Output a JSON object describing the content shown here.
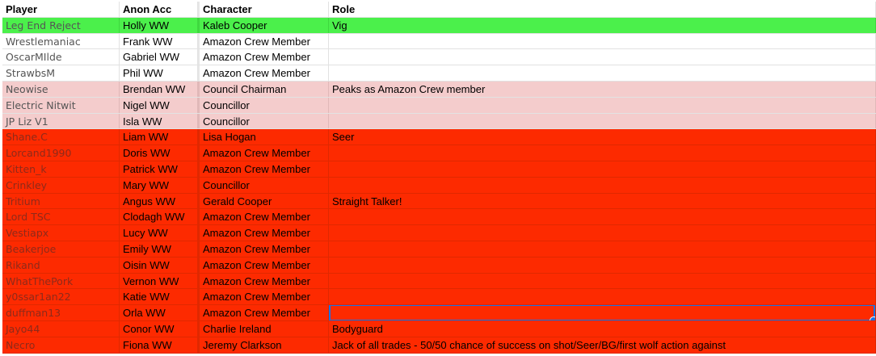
{
  "headers": [
    "Player",
    "Anon Acc",
    "Character",
    "Role"
  ],
  "colors": {
    "green": "#4bf04b",
    "pink": "#f4cccc",
    "red": "#fd2a00",
    "selection": "#1a73e8"
  },
  "rows": [
    {
      "player": "Leg End Reject",
      "anon": "Holly WW",
      "character": "Kaleb Cooper",
      "role": "Vig",
      "fill": "green"
    },
    {
      "player": "Wrestlemaniac",
      "anon": "Frank WW",
      "character": "Amazon Crew Member",
      "role": "",
      "fill": "white"
    },
    {
      "player": "OscarMIlde",
      "anon": "Gabriel WW",
      "character": "Amazon Crew Member",
      "role": "",
      "fill": "white"
    },
    {
      "player": "StrawbsM",
      "anon": "Phil WW",
      "character": "Amazon Crew Member",
      "role": "",
      "fill": "white"
    },
    {
      "player": "Neowise",
      "anon": "Brendan WW",
      "character": "Council Chairman",
      "role": "Peaks as Amazon Crew member",
      "fill": "pink"
    },
    {
      "player": "Electric Nitwit",
      "anon": "Nigel WW",
      "character": "Councillor",
      "role": "",
      "fill": "pink"
    },
    {
      "player": "JP Liz V1",
      "anon": "Isla WW",
      "character": "Councillor",
      "role": "",
      "fill": "pink"
    },
    {
      "player": "Shane.C",
      "anon": "Liam WW",
      "character": "Lisa Hogan",
      "role": "Seer",
      "fill": "red"
    },
    {
      "player": "Lorcand1990",
      "anon": "Doris WW",
      "character": "Amazon Crew Member",
      "role": "",
      "fill": "red"
    },
    {
      "player": "Kitten_k",
      "anon": "Patrick WW",
      "character": "Amazon Crew Member",
      "role": "",
      "fill": "red"
    },
    {
      "player": "Crinkley",
      "anon": "Mary WW",
      "character": "Councillor",
      "role": "",
      "fill": "red"
    },
    {
      "player": "Tritium",
      "anon": "Angus WW",
      "character": "Gerald Cooper",
      "role": "Straight Talker!",
      "fill": "red"
    },
    {
      "player": "Lord TSC",
      "anon": "Clodagh WW",
      "character": "Amazon Crew Member",
      "role": "",
      "fill": "red"
    },
    {
      "player": "Vestiapx",
      "anon": "Lucy WW",
      "character": "Amazon Crew Member",
      "role": "",
      "fill": "red"
    },
    {
      "player": "Beakerjoe",
      "anon": "Emily WW",
      "character": "Amazon Crew Member",
      "role": "",
      "fill": "red"
    },
    {
      "player": "Rikand",
      "anon": "Oisin WW",
      "character": "Amazon Crew Member",
      "role": "",
      "fill": "red"
    },
    {
      "player": "WhatThePork",
      "anon": "Vernon WW",
      "character": "Amazon Crew Member",
      "role": "",
      "fill": "red"
    },
    {
      "player": "y0ssar1an22",
      "anon": "Katie WW",
      "character": "Amazon Crew Member",
      "role": "",
      "fill": "red"
    },
    {
      "player": "duffman13",
      "anon": "Orla WW",
      "character": "Amazon Crew Member",
      "role": "",
      "fill": "red",
      "selected": true
    },
    {
      "player": "Jayo44",
      "anon": "Conor WW",
      "character": "Charlie Ireland",
      "role": "Bodyguard",
      "fill": "red"
    },
    {
      "player": "Necro",
      "anon": "Fiona WW",
      "character": "Jeremy Clarkson",
      "role": "Jack of all trades - 50/50 chance of success on shot/Seer/BG/first wolf action against",
      "fill": "red"
    }
  ]
}
